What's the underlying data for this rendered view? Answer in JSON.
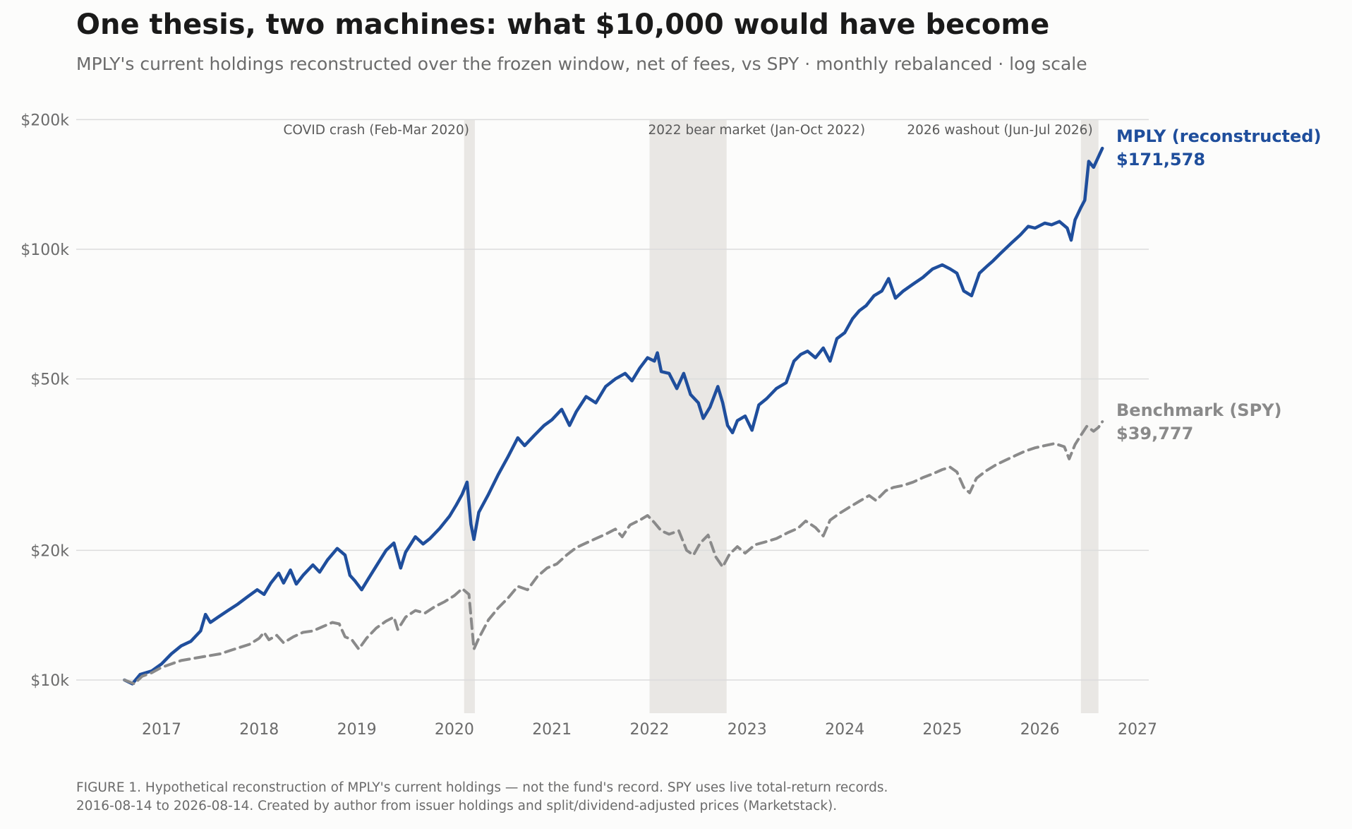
{
  "title": "One thesis, two machines: what $10,000 would have become",
  "subtitle": "MPLY's current holdings reconstructed over the frozen window, net of fees, vs SPY · monthly rebalanced · log scale",
  "caption": {
    "line1": "FIGURE 1. Hypothetical reconstruction of MPLY's current holdings — not the fund's record. SPY uses live total-return records.",
    "line2": "2016-08-14 to 2026-08-14. Created by author from issuer holdings and split/dividend-adjusted prices (Marketstack)."
  },
  "colors": {
    "mply": "#1f4e9c",
    "spy": "#8a8a8a",
    "shade": "#e9e7e4",
    "grid": "#dcdcdc",
    "background": "#fcfcfb"
  },
  "chart_data": {
    "type": "line",
    "scale": "log",
    "x_unit": "year",
    "xlim": [
      2016.45,
      2027.0
    ],
    "ylim": [
      8500,
      200000
    ],
    "x_ticks": [
      {
        "value": 2017,
        "label": "2017"
      },
      {
        "value": 2018,
        "label": "2018"
      },
      {
        "value": 2019,
        "label": "2019"
      },
      {
        "value": 2020,
        "label": "2020"
      },
      {
        "value": 2021,
        "label": "2021"
      },
      {
        "value": 2022,
        "label": "2022"
      },
      {
        "value": 2023,
        "label": "2023"
      },
      {
        "value": 2024,
        "label": "2024"
      },
      {
        "value": 2025,
        "label": "2025"
      },
      {
        "value": 2026,
        "label": "2026"
      },
      {
        "value": 2027,
        "label": "2027"
      }
    ],
    "y_ticks": [
      {
        "value": 10000,
        "label": "$10k"
      },
      {
        "value": 20000,
        "label": "$20k"
      },
      {
        "value": 50000,
        "label": "$50k"
      },
      {
        "value": 100000,
        "label": "$100k"
      },
      {
        "value": 200000,
        "label": "$200k"
      }
    ],
    "grid": "horizontal",
    "shaded_periods": [
      {
        "start": 2020.1,
        "end": 2020.21,
        "label": "COVID crash (Feb-Mar 2020)",
        "label_anchor": "end"
      },
      {
        "start": 2022.0,
        "end": 2022.79,
        "label": "2022 bear market (Jan-Oct 2022)",
        "label_anchor": "start"
      },
      {
        "start": 2026.42,
        "end": 2026.6,
        "label": "2026 washout (Jun-Jul 2026)",
        "label_anchor": "end"
      }
    ],
    "series": [
      {
        "name": "MPLY (reconstructed)",
        "end_value_label": "$171,578",
        "style": "solid",
        "points": [
          [
            2016.62,
            10000
          ],
          [
            2016.7,
            9800
          ],
          [
            2016.78,
            10300
          ],
          [
            2016.9,
            10500
          ],
          [
            2017.0,
            10900
          ],
          [
            2017.1,
            11500
          ],
          [
            2017.2,
            12000
          ],
          [
            2017.3,
            12300
          ],
          [
            2017.4,
            13000
          ],
          [
            2017.45,
            14200
          ],
          [
            2017.5,
            13600
          ],
          [
            2017.58,
            14000
          ],
          [
            2017.68,
            14500
          ],
          [
            2017.78,
            15000
          ],
          [
            2017.88,
            15600
          ],
          [
            2017.98,
            16200
          ],
          [
            2018.05,
            15800
          ],
          [
            2018.12,
            16800
          ],
          [
            2018.2,
            17700
          ],
          [
            2018.25,
            16800
          ],
          [
            2018.32,
            18000
          ],
          [
            2018.38,
            16700
          ],
          [
            2018.45,
            17500
          ],
          [
            2018.55,
            18500
          ],
          [
            2018.62,
            17800
          ],
          [
            2018.7,
            19000
          ],
          [
            2018.8,
            20200
          ],
          [
            2018.88,
            19500
          ],
          [
            2018.93,
            17500
          ],
          [
            2018.98,
            17000
          ],
          [
            2019.05,
            16200
          ],
          [
            2019.12,
            17200
          ],
          [
            2019.2,
            18400
          ],
          [
            2019.3,
            20000
          ],
          [
            2019.38,
            20800
          ],
          [
            2019.45,
            18200
          ],
          [
            2019.5,
            19800
          ],
          [
            2019.6,
            21500
          ],
          [
            2019.68,
            20700
          ],
          [
            2019.75,
            21300
          ],
          [
            2019.85,
            22500
          ],
          [
            2019.95,
            24000
          ],
          [
            2020.02,
            25500
          ],
          [
            2020.08,
            27000
          ],
          [
            2020.13,
            28800
          ],
          [
            2020.17,
            23000
          ],
          [
            2020.2,
            21200
          ],
          [
            2020.25,
            24500
          ],
          [
            2020.35,
            27000
          ],
          [
            2020.45,
            30000
          ],
          [
            2020.55,
            33000
          ],
          [
            2020.65,
            36500
          ],
          [
            2020.72,
            35000
          ],
          [
            2020.82,
            37000
          ],
          [
            2020.92,
            39000
          ],
          [
            2021.0,
            40200
          ],
          [
            2021.1,
            42500
          ],
          [
            2021.18,
            39000
          ],
          [
            2021.25,
            42000
          ],
          [
            2021.35,
            45500
          ],
          [
            2021.45,
            44000
          ],
          [
            2021.55,
            48000
          ],
          [
            2021.65,
            50000
          ],
          [
            2021.75,
            51500
          ],
          [
            2021.82,
            49500
          ],
          [
            2021.9,
            53000
          ],
          [
            2021.98,
            56000
          ],
          [
            2022.05,
            55000
          ],
          [
            2022.08,
            57500
          ],
          [
            2022.12,
            52000
          ],
          [
            2022.2,
            51500
          ],
          [
            2022.28,
            47500
          ],
          [
            2022.35,
            51500
          ],
          [
            2022.42,
            46000
          ],
          [
            2022.5,
            44000
          ],
          [
            2022.55,
            40500
          ],
          [
            2022.62,
            43000
          ],
          [
            2022.7,
            48000
          ],
          [
            2022.75,
            44000
          ],
          [
            2022.8,
            39000
          ],
          [
            2022.85,
            37500
          ],
          [
            2022.9,
            40000
          ],
          [
            2022.98,
            41000
          ],
          [
            2023.05,
            38000
          ],
          [
            2023.12,
            43500
          ],
          [
            2023.2,
            45000
          ],
          [
            2023.3,
            47500
          ],
          [
            2023.4,
            49000
          ],
          [
            2023.48,
            55000
          ],
          [
            2023.55,
            57000
          ],
          [
            2023.62,
            58000
          ],
          [
            2023.7,
            56000
          ],
          [
            2023.78,
            59000
          ],
          [
            2023.85,
            55000
          ],
          [
            2023.92,
            62000
          ],
          [
            2024.0,
            64000
          ],
          [
            2024.08,
            69000
          ],
          [
            2024.15,
            72000
          ],
          [
            2024.22,
            74000
          ],
          [
            2024.3,
            78000
          ],
          [
            2024.38,
            80000
          ],
          [
            2024.45,
            85500
          ],
          [
            2024.52,
            77000
          ],
          [
            2024.6,
            80000
          ],
          [
            2024.7,
            83000
          ],
          [
            2024.8,
            86000
          ],
          [
            2024.9,
            90000
          ],
          [
            2025.0,
            92000
          ],
          [
            2025.08,
            90000
          ],
          [
            2025.15,
            88000
          ],
          [
            2025.22,
            80000
          ],
          [
            2025.3,
            78000
          ],
          [
            2025.38,
            88000
          ],
          [
            2025.45,
            91000
          ],
          [
            2025.52,
            94000
          ],
          [
            2025.6,
            98000
          ],
          [
            2025.7,
            103000
          ],
          [
            2025.8,
            108000
          ],
          [
            2025.88,
            113000
          ],
          [
            2025.95,
            112000
          ],
          [
            2026.05,
            115000
          ],
          [
            2026.12,
            114000
          ],
          [
            2026.2,
            116000
          ],
          [
            2026.28,
            112000
          ],
          [
            2026.32,
            105000
          ],
          [
            2026.36,
            117000
          ],
          [
            2026.42,
            125000
          ],
          [
            2026.46,
            130000
          ],
          [
            2026.5,
            160000
          ],
          [
            2026.55,
            155000
          ],
          [
            2026.6,
            164000
          ],
          [
            2026.64,
            171578
          ]
        ]
      },
      {
        "name": "Benchmark (SPY)",
        "end_value_label": "$39,777",
        "style": "dashed",
        "points": [
          [
            2016.62,
            10000
          ],
          [
            2016.72,
            9800
          ],
          [
            2016.8,
            10200
          ],
          [
            2016.9,
            10400
          ],
          [
            2017.0,
            10700
          ],
          [
            2017.1,
            10900
          ],
          [
            2017.2,
            11100
          ],
          [
            2017.3,
            11200
          ],
          [
            2017.4,
            11300
          ],
          [
            2017.5,
            11400
          ],
          [
            2017.6,
            11500
          ],
          [
            2017.7,
            11700
          ],
          [
            2017.8,
            11900
          ],
          [
            2017.9,
            12100
          ],
          [
            2018.0,
            12500
          ],
          [
            2018.05,
            12900
          ],
          [
            2018.1,
            12400
          ],
          [
            2018.18,
            12700
          ],
          [
            2018.25,
            12200
          ],
          [
            2018.35,
            12600
          ],
          [
            2018.45,
            12900
          ],
          [
            2018.55,
            13000
          ],
          [
            2018.65,
            13300
          ],
          [
            2018.75,
            13600
          ],
          [
            2018.82,
            13500
          ],
          [
            2018.88,
            12600
          ],
          [
            2018.95,
            12400
          ],
          [
            2019.02,
            11800
          ],
          [
            2019.1,
            12500
          ],
          [
            2019.2,
            13200
          ],
          [
            2019.3,
            13700
          ],
          [
            2019.38,
            14000
          ],
          [
            2019.42,
            13100
          ],
          [
            2019.5,
            14000
          ],
          [
            2019.6,
            14500
          ],
          [
            2019.7,
            14300
          ],
          [
            2019.8,
            14800
          ],
          [
            2019.9,
            15200
          ],
          [
            2020.0,
            15700
          ],
          [
            2020.08,
            16300
          ],
          [
            2020.15,
            15800
          ],
          [
            2020.2,
            11800
          ],
          [
            2020.25,
            12500
          ],
          [
            2020.35,
            13800
          ],
          [
            2020.45,
            14700
          ],
          [
            2020.55,
            15500
          ],
          [
            2020.65,
            16500
          ],
          [
            2020.75,
            16200
          ],
          [
            2020.85,
            17400
          ],
          [
            2020.95,
            18200
          ],
          [
            2021.05,
            18600
          ],
          [
            2021.15,
            19500
          ],
          [
            2021.25,
            20300
          ],
          [
            2021.35,
            20800
          ],
          [
            2021.45,
            21300
          ],
          [
            2021.55,
            21800
          ],
          [
            2021.65,
            22400
          ],
          [
            2021.72,
            21500
          ],
          [
            2021.8,
            22900
          ],
          [
            2021.9,
            23500
          ],
          [
            2021.98,
            24100
          ],
          [
            2022.05,
            23200
          ],
          [
            2022.12,
            22200
          ],
          [
            2022.2,
            21800
          ],
          [
            2022.3,
            22200
          ],
          [
            2022.38,
            20000
          ],
          [
            2022.45,
            19500
          ],
          [
            2022.52,
            20800
          ],
          [
            2022.6,
            21700
          ],
          [
            2022.68,
            19300
          ],
          [
            2022.75,
            18300
          ],
          [
            2022.82,
            19600
          ],
          [
            2022.9,
            20400
          ],
          [
            2022.98,
            19700
          ],
          [
            2023.08,
            20600
          ],
          [
            2023.18,
            20900
          ],
          [
            2023.3,
            21300
          ],
          [
            2023.42,
            22000
          ],
          [
            2023.52,
            22500
          ],
          [
            2023.6,
            23400
          ],
          [
            2023.7,
            22600
          ],
          [
            2023.78,
            21600
          ],
          [
            2023.85,
            23500
          ],
          [
            2023.95,
            24400
          ],
          [
            2024.05,
            25200
          ],
          [
            2024.15,
            26000
          ],
          [
            2024.25,
            26800
          ],
          [
            2024.32,
            26100
          ],
          [
            2024.42,
            27500
          ],
          [
            2024.5,
            28000
          ],
          [
            2024.6,
            28300
          ],
          [
            2024.7,
            28800
          ],
          [
            2024.8,
            29500
          ],
          [
            2024.9,
            30100
          ],
          [
            2025.0,
            30800
          ],
          [
            2025.08,
            31200
          ],
          [
            2025.15,
            30400
          ],
          [
            2025.22,
            28000
          ],
          [
            2025.28,
            27200
          ],
          [
            2025.35,
            29400
          ],
          [
            2025.45,
            30600
          ],
          [
            2025.55,
            31600
          ],
          [
            2025.65,
            32400
          ],
          [
            2025.75,
            33200
          ],
          [
            2025.85,
            34000
          ],
          [
            2025.95,
            34600
          ],
          [
            2026.05,
            35000
          ],
          [
            2026.15,
            35400
          ],
          [
            2026.25,
            34800
          ],
          [
            2026.3,
            32600
          ],
          [
            2026.36,
            35200
          ],
          [
            2026.42,
            37000
          ],
          [
            2026.48,
            38800
          ],
          [
            2026.55,
            37800
          ],
          [
            2026.6,
            38600
          ],
          [
            2026.64,
            39777
          ]
        ]
      }
    ]
  }
}
